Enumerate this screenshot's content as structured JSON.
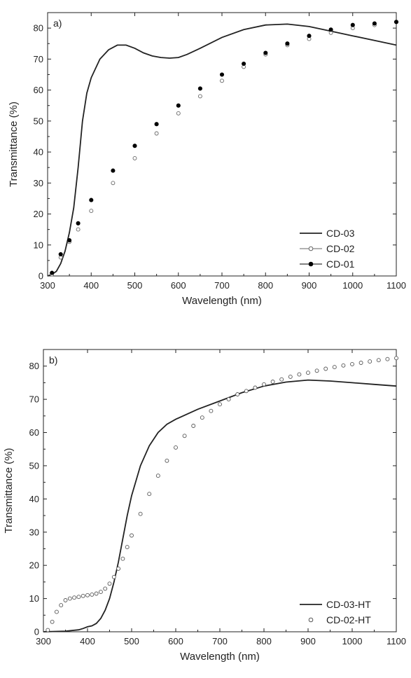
{
  "chart_data": [
    {
      "type": "line",
      "panel_label": "a)",
      "xlabel": "Wavelength (nm)",
      "ylabel": "Transmittance (%)",
      "xlim": [
        300,
        1100
      ],
      "ylim": [
        0,
        85
      ],
      "xticks": [
        300,
        400,
        500,
        600,
        700,
        800,
        900,
        1000,
        1100
      ],
      "yticks": [
        0,
        10,
        20,
        30,
        40,
        50,
        60,
        70,
        80
      ],
      "legend_position": "bottom-right",
      "series": [
        {
          "name": "CD-03",
          "style": "line",
          "color": "#222222",
          "x": [
            300,
            310,
            320,
            330,
            340,
            350,
            360,
            370,
            380,
            390,
            400,
            420,
            440,
            460,
            480,
            500,
            520,
            540,
            560,
            580,
            600,
            620,
            650,
            700,
            750,
            800,
            850,
            900,
            950,
            1000,
            1050,
            1100
          ],
          "y": [
            0,
            0.5,
            1.5,
            4,
            8,
            14,
            22,
            35,
            50,
            59,
            64,
            70,
            73,
            74.5,
            74.5,
            73.5,
            72,
            71,
            70.5,
            70.3,
            70.5,
            71.5,
            73.5,
            77,
            79.5,
            81,
            81.3,
            80.5,
            79,
            77.5,
            76,
            74.5
          ]
        },
        {
          "name": "CD-02",
          "style": "open-circle",
          "color": "#666666",
          "x": [
            310,
            330,
            350,
            370,
            400,
            450,
            500,
            550,
            600,
            650,
            700,
            750,
            800,
            850,
            900,
            950,
            1000,
            1050,
            1100
          ],
          "y": [
            0.5,
            6,
            11,
            15,
            21,
            30,
            38,
            46,
            52.5,
            58,
            63,
            67.5,
            71.5,
            74.5,
            76.5,
            78.5,
            80,
            81,
            82
          ]
        },
        {
          "name": "CD-01",
          "style": "filled-circle",
          "color": "#000000",
          "x": [
            310,
            330,
            350,
            370,
            400,
            450,
            500,
            550,
            600,
            650,
            700,
            750,
            800,
            850,
            900,
            950,
            1000,
            1050,
            1100
          ],
          "y": [
            1,
            7,
            11.5,
            17,
            24.5,
            34,
            42,
            49,
            55,
            60.5,
            65,
            68.5,
            72,
            75,
            77.5,
            79.5,
            81,
            81.5,
            82
          ]
        }
      ]
    },
    {
      "type": "line",
      "panel_label": "b)",
      "xlabel": "Wavelength (nm)",
      "ylabel": "Transmittance (%)",
      "xlim": [
        300,
        1100
      ],
      "ylim": [
        0,
        85
      ],
      "xticks": [
        300,
        400,
        500,
        600,
        700,
        800,
        900,
        1000,
        1100
      ],
      "yticks": [
        0,
        10,
        20,
        30,
        40,
        50,
        60,
        70,
        80
      ],
      "legend_position": "bottom-right",
      "series": [
        {
          "name": "CD-03-HT",
          "style": "line",
          "color": "#222222",
          "x": [
            300,
            350,
            380,
            390,
            400,
            410,
            420,
            430,
            440,
            450,
            460,
            470,
            480,
            490,
            500,
            520,
            540,
            560,
            580,
            600,
            650,
            700,
            750,
            800,
            850,
            900,
            950,
            1000,
            1050,
            1100
          ],
          "y": [
            0,
            0.2,
            0.6,
            1,
            1.5,
            1.8,
            2.5,
            4,
            6.5,
            10,
            15,
            21,
            28,
            35,
            41,
            50,
            56,
            60,
            62.5,
            64,
            67,
            69.5,
            72,
            74,
            75.2,
            75.8,
            75.5,
            75,
            74.5,
            74
          ]
        },
        {
          "name": "CD-02-HT",
          "style": "open-circle",
          "color": "#555555",
          "x": [
            310,
            320,
            330,
            340,
            350,
            360,
            370,
            380,
            390,
            400,
            410,
            420,
            430,
            440,
            450,
            460,
            470,
            480,
            490,
            500,
            520,
            540,
            560,
            580,
            600,
            620,
            640,
            660,
            680,
            700,
            720,
            740,
            760,
            780,
            800,
            820,
            840,
            860,
            880,
            900,
            920,
            940,
            960,
            980,
            1000,
            1020,
            1040,
            1060,
            1080,
            1100
          ],
          "y": [
            0.5,
            3,
            6,
            8,
            9.5,
            10,
            10.3,
            10.5,
            10.8,
            11,
            11.2,
            11.5,
            12,
            13,
            14.5,
            16.5,
            19,
            22,
            25.5,
            29,
            35.5,
            41.5,
            47,
            51.5,
            55.5,
            59,
            62,
            64.5,
            66.5,
            68.5,
            70,
            71.5,
            72.5,
            73.5,
            74.5,
            75.3,
            76,
            76.8,
            77.5,
            78,
            78.6,
            79.2,
            79.7,
            80.2,
            80.6,
            81,
            81.4,
            81.8,
            82.1,
            82.4
          ]
        }
      ]
    }
  ]
}
